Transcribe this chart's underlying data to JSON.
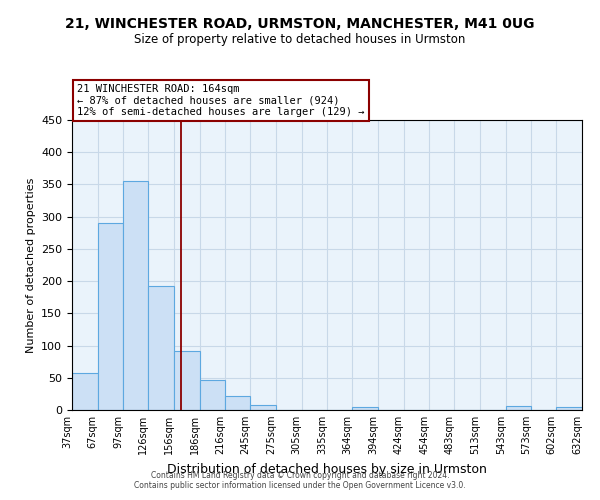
{
  "title": "21, WINCHESTER ROAD, URMSTON, MANCHESTER, M41 0UG",
  "subtitle": "Size of property relative to detached houses in Urmston",
  "xlabel": "Distribution of detached houses by size in Urmston",
  "ylabel": "Number of detached properties",
  "bar_left_edges": [
    37,
    67,
    97,
    126,
    156,
    186,
    216,
    245,
    275,
    305,
    335,
    364,
    394,
    424,
    454,
    483,
    513,
    543,
    573,
    602
  ],
  "bar_widths": [
    30,
    30,
    29,
    30,
    30,
    30,
    29,
    30,
    30,
    30,
    29,
    30,
    30,
    30,
    29,
    30,
    30,
    30,
    29,
    30
  ],
  "bar_heights": [
    58,
    290,
    355,
    192,
    91,
    46,
    21,
    8,
    0,
    0,
    0,
    5,
    0,
    0,
    0,
    0,
    0,
    6,
    0,
    4
  ],
  "bar_facecolor": "#cce0f5",
  "bar_edgecolor": "#5da8e0",
  "tick_labels": [
    "37sqm",
    "67sqm",
    "97sqm",
    "126sqm",
    "156sqm",
    "186sqm",
    "216sqm",
    "245sqm",
    "275sqm",
    "305sqm",
    "335sqm",
    "364sqm",
    "394sqm",
    "424sqm",
    "454sqm",
    "483sqm",
    "513sqm",
    "543sqm",
    "573sqm",
    "602sqm",
    "632sqm"
  ],
  "ylim": [
    0,
    450
  ],
  "yticks": [
    0,
    50,
    100,
    150,
    200,
    250,
    300,
    350,
    400,
    450
  ],
  "red_line_x": 164,
  "annotation_title": "21 WINCHESTER ROAD: 164sqm",
  "annotation_line1": "← 87% of detached houses are smaller (924)",
  "annotation_line2": "12% of semi-detached houses are larger (129) →",
  "grid_color": "#c8d8e8",
  "bg_color": "#eaf3fb",
  "footer1": "Contains HM Land Registry data © Crown copyright and database right 2024.",
  "footer2": "Contains public sector information licensed under the Open Government Licence v3.0."
}
